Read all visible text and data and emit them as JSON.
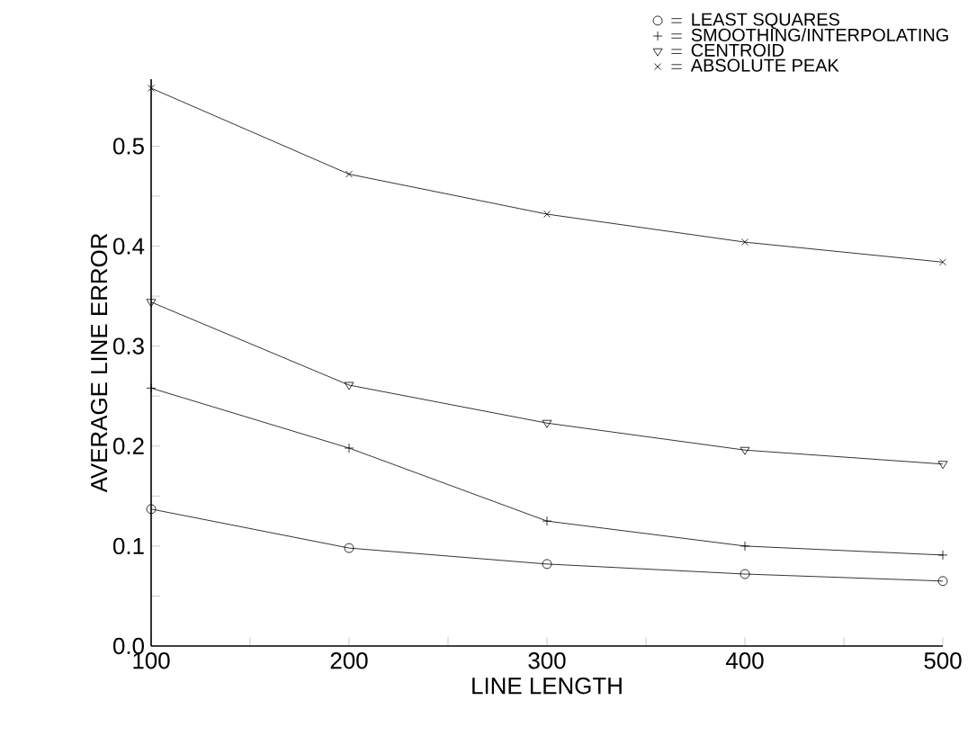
{
  "chart_data": {
    "type": "line",
    "xlabel": "LINE LENGTH",
    "ylabel": "AVERAGE LINE ERROR",
    "x": [
      100,
      200,
      300,
      400,
      500
    ],
    "series": [
      {
        "name": "LEAST SQUARES",
        "color": "#000000",
        "marker": "circle",
        "values": [
          0.137,
          0.098,
          0.082,
          0.072,
          0.065
        ]
      },
      {
        "name": "SMOOTHING/INTERPOLATING",
        "color": "#000000",
        "marker": "plus",
        "values": [
          0.258,
          0.198,
          0.125,
          0.1,
          0.091
        ]
      },
      {
        "name": "CENTROID",
        "color": "#000000",
        "marker": "triangle",
        "values": [
          0.344,
          0.261,
          0.223,
          0.196,
          0.182
        ]
      },
      {
        "name": "ABSOLUTE PEAK",
        "color": "#000000",
        "marker": "cross",
        "values": [
          0.558,
          0.472,
          0.432,
          0.404,
          0.384
        ]
      }
    ],
    "xlim": [
      100,
      500
    ],
    "ylim": [
      0,
      0.567
    ],
    "xticks": [
      100,
      {
        "value": 150,
        "label": null
      },
      200,
      {
        "value": 250,
        "label": null
      },
      300,
      {
        "value": 350,
        "label": null
      },
      400,
      {
        "value": 450,
        "label": null
      },
      500
    ],
    "yticks": [
      {
        "value": 0,
        "label": "0.0"
      },
      {
        "value": 0.05,
        "label": null
      },
      0.1,
      {
        "value": 0.15,
        "label": null
      },
      0.2,
      {
        "value": 0.25,
        "label": null
      },
      0.3,
      {
        "value": 0.35,
        "label": null
      },
      0.4,
      {
        "value": 0.45,
        "label": null
      },
      0.5
    ],
    "legend": "top right",
    "line_style": "solid",
    "grid": false
  }
}
